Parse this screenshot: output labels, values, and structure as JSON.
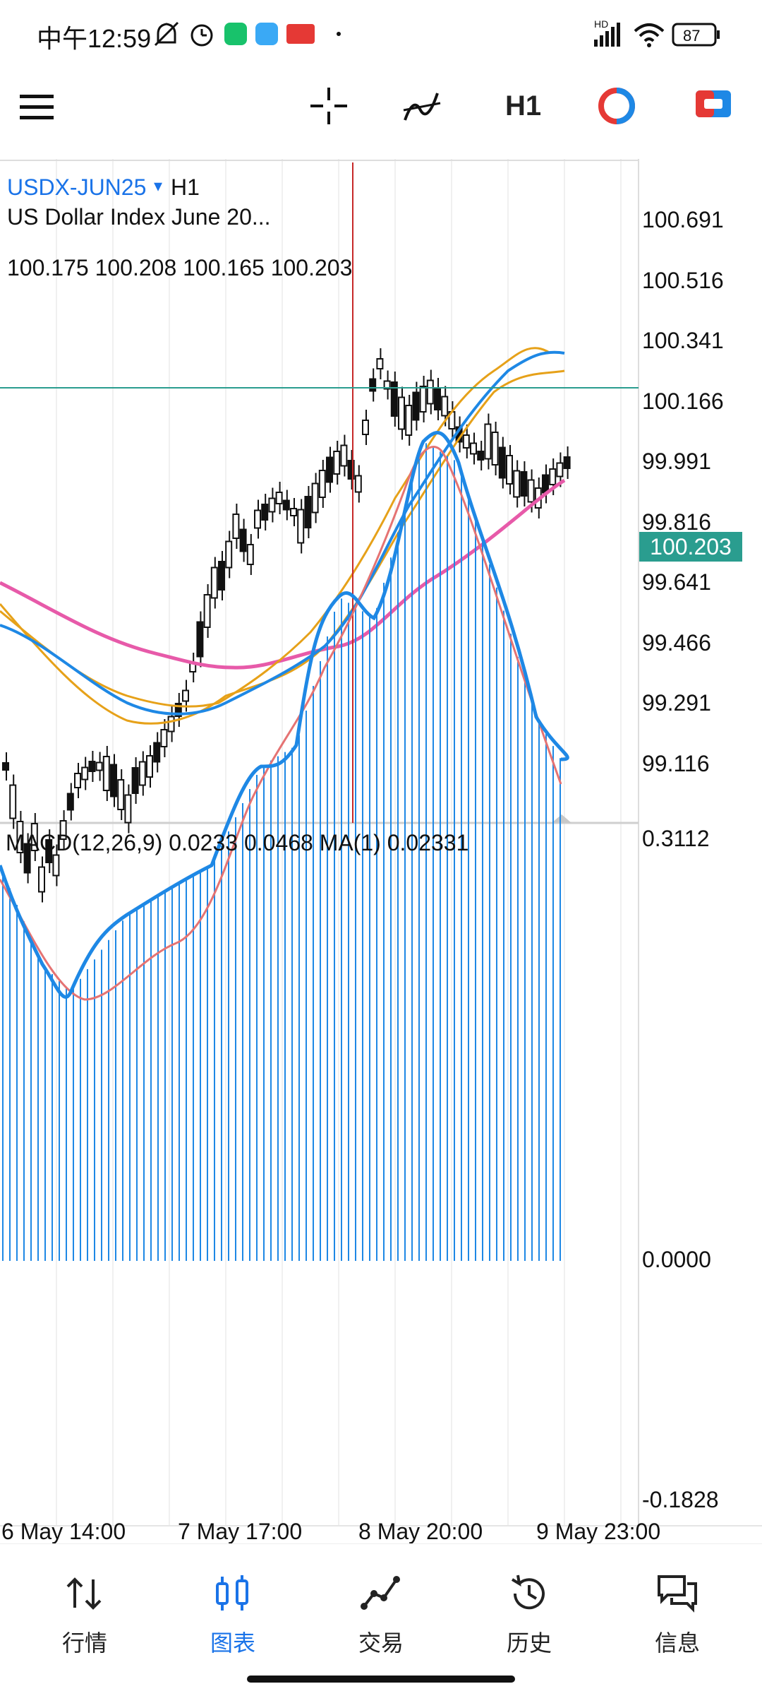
{
  "status_bar": {
    "time": "中午12:59",
    "battery": "87",
    "network": "HD",
    "icons": [
      "mute-bell-icon",
      "alarm-icon",
      "app-icon-green",
      "app-icon-blue",
      "toutiao-icon",
      "wifi-icon",
      "signal-icon",
      "battery-icon"
    ]
  },
  "toolbar": {
    "timeframe": "H1",
    "icons": [
      "menu-icon",
      "crosshair-icon",
      "indicators-icon",
      "timeframe-button",
      "color-icon",
      "objects-icon"
    ]
  },
  "chart": {
    "symbol": "USDX-JUN25",
    "dropdown": "▾",
    "timeframe": "H1",
    "description": "US Dollar Index June 20...",
    "ohlc": "100.175 100.208 100.165 100.203",
    "current_price": "100.203",
    "price_axis": [
      "100.691",
      "100.516",
      "100.341",
      "100.166",
      "99.991",
      "99.816",
      "99.641",
      "99.466",
      "99.291",
      "99.116"
    ],
    "colors": {
      "grid": "#f0f0f0",
      "ma_blue": "#1e88e5",
      "ma_orange": "#e6a119",
      "ma_pink": "#e75aa9",
      "macd_hist": "#1e88e5",
      "macd_signal": "#e57373",
      "cursor_line": "#c62828",
      "current_price_bg": "#2a9d8f"
    }
  },
  "macd": {
    "label": "MACD(12,26,9) 0.0233 0.0468 MA(1) 0.02331",
    "axis_top": "0.3112",
    "axis_zero": "0.0000",
    "axis_bottom": "-0.1828"
  },
  "time_axis": [
    "6 May 14:00",
    "7 May 17:00",
    "8 May 20:00",
    "9 May 23:00"
  ],
  "nav": {
    "items": [
      {
        "label": "行情",
        "icon": "quotes-icon"
      },
      {
        "label": "图表",
        "icon": "chart-icon"
      },
      {
        "label": "交易",
        "icon": "trade-icon"
      },
      {
        "label": "历史",
        "icon": "history-icon"
      },
      {
        "label": "信息",
        "icon": "messages-icon"
      }
    ],
    "active_index": 1
  }
}
